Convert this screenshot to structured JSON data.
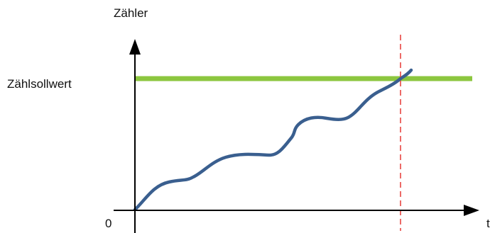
{
  "labels": {
    "y_axis": "Zähler",
    "setpoint": "Zählsollwert",
    "origin": "0",
    "x_axis": "t"
  },
  "colors": {
    "axis": "#000000",
    "setpoint_line": "#8cc63f",
    "count_curve": "#3a5f8f",
    "marker_line": "#e53935"
  }
}
